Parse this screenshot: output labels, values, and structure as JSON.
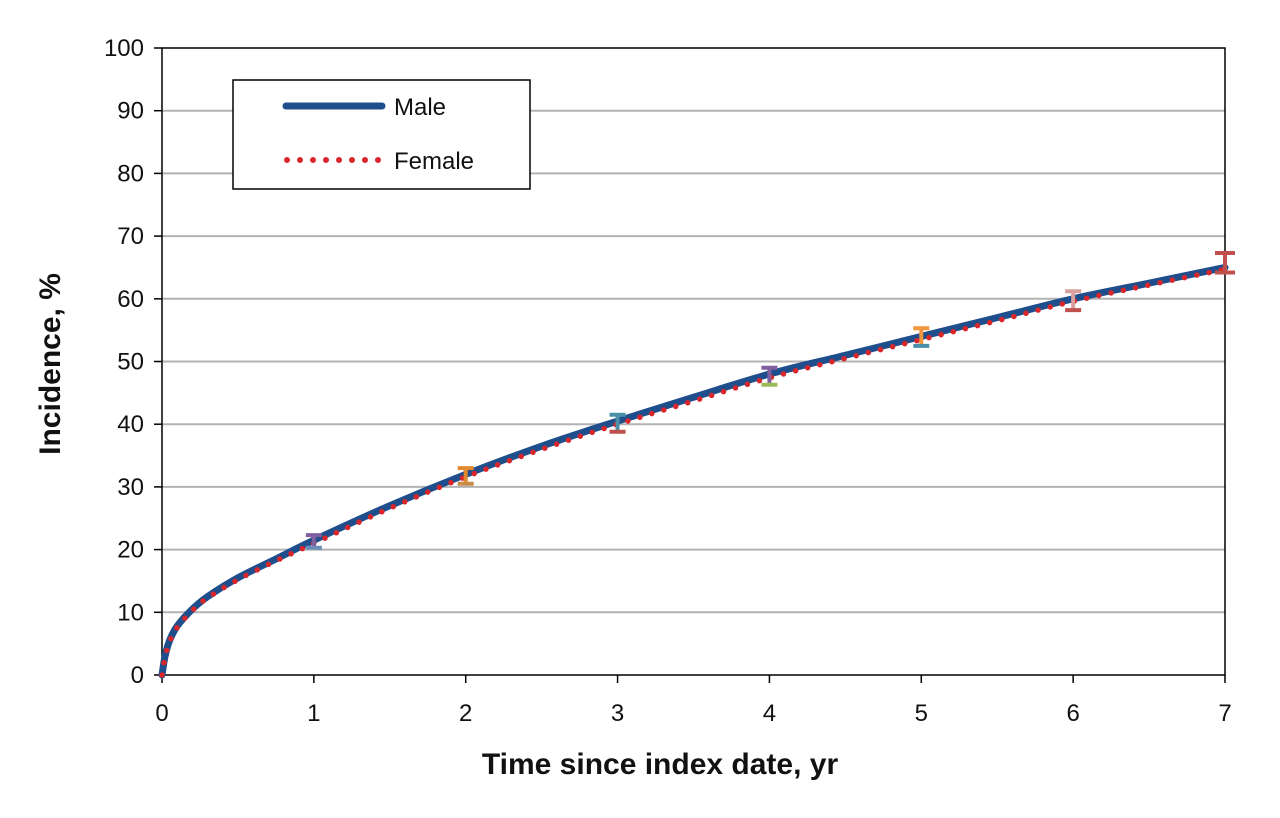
{
  "chart_data": {
    "type": "line",
    "title": "",
    "xlabel": "Time since index date, yr",
    "ylabel": "Incidence, %",
    "xlim": [
      0,
      7
    ],
    "ylim": [
      0,
      100
    ],
    "x_ticks": [
      "0",
      "1",
      "2",
      "3",
      "4",
      "5",
      "6",
      "7"
    ],
    "y_ticks": [
      "0",
      "10",
      "20",
      "30",
      "40",
      "50",
      "60",
      "70",
      "80",
      "90",
      "100"
    ],
    "grid": "horizontal",
    "legend_position": "top-left",
    "series": [
      {
        "name": "Male",
        "style": "solid",
        "color": "#1f4e8c",
        "x": [
          0,
          0.02,
          0.05,
          0.1,
          0.2,
          0.3,
          0.5,
          0.75,
          1,
          1.5,
          2,
          2.5,
          3,
          3.5,
          4,
          4.5,
          5,
          5.5,
          6,
          6.5,
          7
        ],
        "y": [
          0,
          3,
          5.5,
          7.8,
          10.5,
          12.5,
          15.5,
          18.5,
          21.5,
          27,
          32,
          36.5,
          40.5,
          44.3,
          48,
          51,
          54,
          57,
          60,
          62.5,
          65
        ]
      },
      {
        "name": "Female",
        "style": "dotted",
        "color": "#d9262b",
        "x": [
          0,
          0.02,
          0.05,
          0.1,
          0.2,
          0.3,
          0.5,
          0.75,
          1,
          1.5,
          2,
          2.5,
          3,
          3.5,
          4,
          4.5,
          5,
          5.5,
          6,
          6.5,
          7
        ],
        "y": [
          0,
          2.8,
          5.3,
          7.6,
          10.3,
          12.3,
          15.2,
          18.2,
          21,
          26.6,
          31.6,
          36,
          40,
          43.7,
          47.4,
          50.5,
          53.5,
          56.5,
          59.6,
          62.2,
          64.7
        ]
      }
    ],
    "error_bars": [
      {
        "x": 1,
        "low": 20.3,
        "high": 22.3,
        "colors": [
          "#7f5fa0",
          "#6a8cb8"
        ]
      },
      {
        "x": 2,
        "low": 30.5,
        "high": 33,
        "colors": [
          "#e28a30",
          "#c98c4a"
        ]
      },
      {
        "x": 3,
        "low": 38.8,
        "high": 41.5,
        "colors": [
          "#4a8fa8",
          "#c0504d"
        ]
      },
      {
        "x": 4,
        "low": 46.3,
        "high": 49,
        "colors": [
          "#7f5fa0",
          "#9bbb59"
        ]
      },
      {
        "x": 5,
        "low": 52.5,
        "high": 55.3,
        "colors": [
          "#f0963c",
          "#4a8fa8"
        ]
      },
      {
        "x": 6,
        "low": 58.2,
        "high": 61.2,
        "colors": [
          "#d9a0a0",
          "#c0504d"
        ]
      },
      {
        "x": 7,
        "low": 64.2,
        "high": 67.3,
        "colors": [
          "#c0504d",
          "#c0504d"
        ]
      }
    ]
  }
}
